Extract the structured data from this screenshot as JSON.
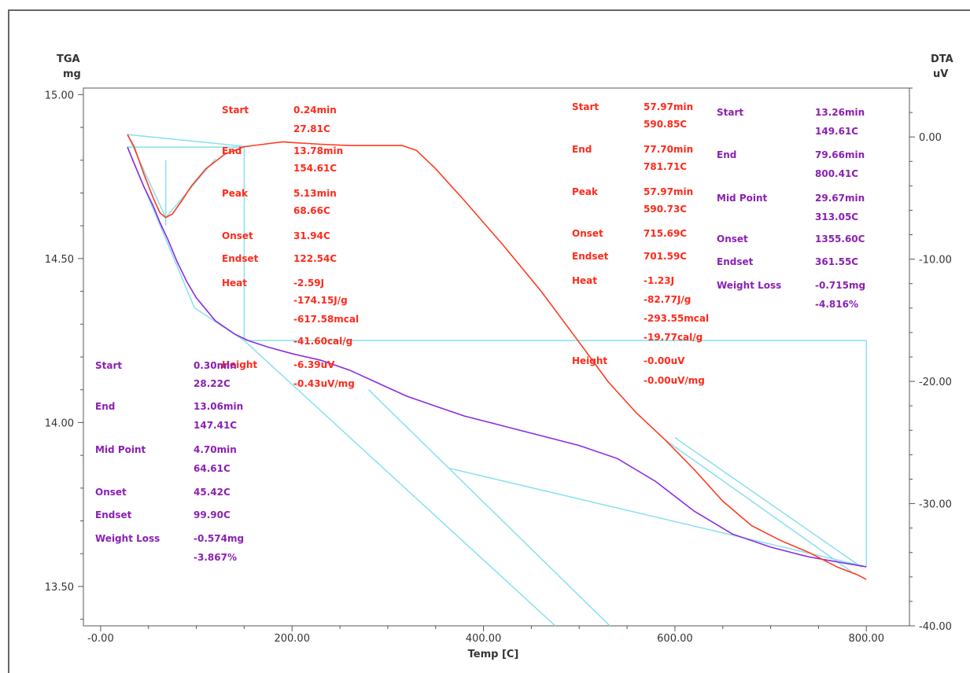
{
  "chart_data": {
    "type": "line",
    "xlabel": "Temp  [C]",
    "left_axis": {
      "title": "TGA",
      "unit": "mg",
      "range": [
        13.38,
        15.02
      ],
      "ticks": [
        {
          "v": 15.0,
          "label": "15.00"
        },
        {
          "v": 14.5,
          "label": "14.50"
        },
        {
          "v": 14.0,
          "label": "14.00"
        },
        {
          "v": 13.5,
          "label": "13.50"
        }
      ]
    },
    "right_axis": {
      "title": "DTA",
      "unit": "uV",
      "range": [
        -40.0,
        4.0
      ],
      "ticks": [
        {
          "v": 0,
          "label": "0.00"
        },
        {
          "v": -10,
          "label": "-10.00"
        },
        {
          "v": -20,
          "label": "-20.00"
        },
        {
          "v": -30,
          "label": "-30.00"
        },
        {
          "v": -40,
          "label": "-40.00"
        }
      ]
    },
    "x_axis": {
      "range": [
        -18,
        845
      ],
      "ticks": [
        {
          "v": 0,
          "label": "-0.00"
        },
        {
          "v": 200,
          "label": "200.00"
        },
        {
          "v": 400,
          "label": "400.00"
        },
        {
          "v": 600,
          "label": "600.00"
        },
        {
          "v": 800,
          "label": "800.00"
        }
      ]
    },
    "grid": false,
    "series": [
      {
        "axis": "TGA",
        "color": "#8a2be2",
        "x": [
          28,
          35,
          45,
          55,
          62,
          70,
          80,
          90,
          100,
          120,
          140,
          154,
          175,
          200,
          230,
          260,
          290,
          320,
          350,
          380,
          420,
          460,
          500,
          540,
          580,
          620,
          660,
          700,
          740,
          780,
          800
        ],
        "y": [
          14.84,
          14.79,
          14.72,
          14.66,
          14.61,
          14.56,
          14.49,
          14.43,
          14.38,
          14.31,
          14.27,
          14.25,
          14.23,
          14.21,
          14.19,
          14.16,
          14.12,
          14.08,
          14.05,
          14.02,
          13.99,
          13.96,
          13.93,
          13.89,
          13.82,
          13.73,
          13.66,
          13.62,
          13.59,
          13.57,
          13.56
        ]
      },
      {
        "axis": "DTA",
        "color": "#ff3b1f",
        "x": [
          28,
          35,
          45,
          55,
          62,
          68,
          75,
          85,
          95,
          110,
          130,
          150,
          170,
          190,
          210,
          230,
          260,
          290,
          315,
          330,
          350,
          380,
          420,
          460,
          500,
          530,
          560,
          590,
          620,
          650,
          680,
          710,
          740,
          770,
          790,
          800
        ],
        "y": [
          0.2,
          -0.8,
          -3.0,
          -5.0,
          -6.2,
          -6.6,
          -6.3,
          -5.2,
          -4.0,
          -2.6,
          -1.4,
          -0.8,
          -0.6,
          -0.4,
          -0.5,
          -0.6,
          -0.7,
          -0.7,
          -0.7,
          -1.1,
          -2.6,
          -5.2,
          -8.8,
          -12.6,
          -16.8,
          -20.0,
          -22.6,
          -24.8,
          -27.2,
          -29.8,
          -31.8,
          -33.0,
          -34.0,
          -35.2,
          -35.8,
          -36.2
        ]
      }
    ],
    "annotations": {
      "dta_peak1": {
        "color": "#ff2a1a",
        "rows": [
          [
            "Start",
            "0.24min"
          ],
          [
            "",
            "27.81C"
          ],
          [
            "End",
            "13.78min"
          ],
          [
            "",
            "154.61C"
          ],
          [
            "Peak",
            "5.13min"
          ],
          [
            "",
            "68.66C"
          ],
          [
            "Onset",
            "31.94C"
          ],
          [
            "Endset",
            "122.54C"
          ],
          [
            "Heat",
            "-2.59J"
          ],
          [
            "",
            "-174.15J/g"
          ],
          [
            "",
            "-617.58mcal"
          ],
          [
            "",
            "-41.60cal/g"
          ],
          [
            "Height",
            "-6.39uV"
          ],
          [
            "",
            "-0.43uV/mg"
          ]
        ]
      },
      "dta_peak2": {
        "color": "#ff2a1a",
        "rows": [
          [
            "Start",
            "57.97min"
          ],
          [
            "",
            "590.85C"
          ],
          [
            "End",
            "77.70min"
          ],
          [
            "",
            "781.71C"
          ],
          [
            "Peak",
            "57.97min"
          ],
          [
            "",
            "590.73C"
          ],
          [
            "Onset",
            "715.69C"
          ],
          [
            "Endset",
            "701.59C"
          ],
          [
            "Heat",
            "-1.23J"
          ],
          [
            "",
            "-82.77J/g"
          ],
          [
            "",
            "-293.55mcal"
          ],
          [
            "",
            "-19.77cal/g"
          ],
          [
            "Height",
            "-0.00uV"
          ],
          [
            "",
            "-0.00uV/mg"
          ]
        ]
      },
      "tga_step1": {
        "color": "#8b1fb3",
        "rows": [
          [
            "Start",
            "0.30min"
          ],
          [
            "",
            "28.22C"
          ],
          [
            "End",
            "13.06min"
          ],
          [
            "",
            "147.41C"
          ],
          [
            "Mid Point",
            "4.70min"
          ],
          [
            "",
            "64.61C"
          ],
          [
            "Onset",
            "45.42C"
          ],
          [
            "Endset",
            "99.90C"
          ],
          [
            "Weight Loss",
            "-0.574mg"
          ],
          [
            "",
            "-3.867%"
          ]
        ]
      },
      "tga_step2": {
        "color": "#8b1fb3",
        "rows": [
          [
            "Start",
            "13.26min"
          ],
          [
            "",
            "149.61C"
          ],
          [
            "End",
            "79.66min"
          ],
          [
            "",
            "800.41C"
          ],
          [
            "Mid Point",
            "29.67min"
          ],
          [
            "",
            "313.05C"
          ],
          [
            "Onset",
            "1355.60C"
          ],
          [
            "Endset",
            "361.55C"
          ],
          [
            "Weight Loss",
            "-0.715mg"
          ],
          [
            "",
            "-4.816%"
          ]
        ]
      }
    }
  }
}
